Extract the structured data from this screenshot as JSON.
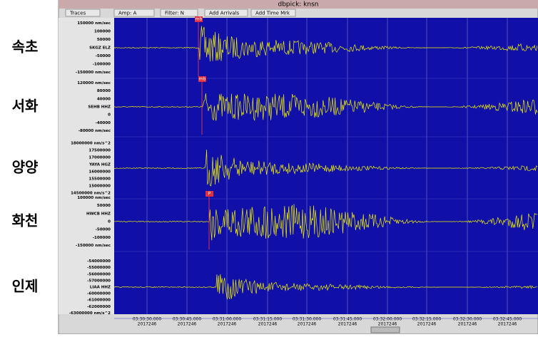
{
  "window": {
    "title": "dbpick: knsn",
    "toolbar": [
      "Traces",
      "Amp: A",
      "Filter: N",
      "Add Arrivals",
      "Add Time Mrk"
    ]
  },
  "traces": [
    {
      "region": "속초",
      "rows": [
        "150000 nm/sec",
        "100000",
        "50000",
        "SKGZ ELZ",
        "-50000",
        "-100000",
        "-150000 nm/sec"
      ],
      "pick": "mb"
    },
    {
      "region": "서화",
      "rows": [
        "120000 nm/sec",
        "80000",
        "40000",
        "SEHB HHZ",
        "0",
        "-40000",
        "-80000 nm/sec"
      ],
      "pick": "mb"
    },
    {
      "region": "양양",
      "rows": [
        "18000000 nm/s^2",
        "17500000",
        "17000000",
        "YAYA HGZ",
        "16000000",
        "15500000",
        "15000000",
        "14500000 nm/s^2"
      ]
    },
    {
      "region": "화천",
      "rows": [
        "100000 nm/sec",
        "50000",
        "HWCB HHZ",
        "0",
        "-50000",
        "-100000",
        "-150000 nm/sec"
      ],
      "pick": "P"
    },
    {
      "region": "인제",
      "rows": [
        "-54000000",
        "-55000000",
        "-56000000",
        "-57000000",
        "LIAA HHZ",
        "-60000000",
        "-61000000",
        "-62000000",
        "-63000000 nm/s^2"
      ]
    }
  ],
  "time_axis": [
    {
      "time": "03:30:30.000",
      "date": "2017246"
    },
    {
      "time": "03:30:45.000",
      "date": "2017246"
    },
    {
      "time": "03:31:00.000",
      "date": "2017246"
    },
    {
      "time": "03:31:15.000",
      "date": "2017246"
    },
    {
      "time": "03:31:30.000",
      "date": "2017246"
    },
    {
      "time": "03:31:45.000",
      "date": "2017246"
    },
    {
      "time": "03:32:00.000",
      "date": "2017246"
    },
    {
      "time": "03:32:15.000",
      "date": "2017246"
    },
    {
      "time": "03:32:30.000",
      "date": "2017246"
    },
    {
      "time": "03:32:45.000",
      "date": "2017246"
    }
  ]
}
